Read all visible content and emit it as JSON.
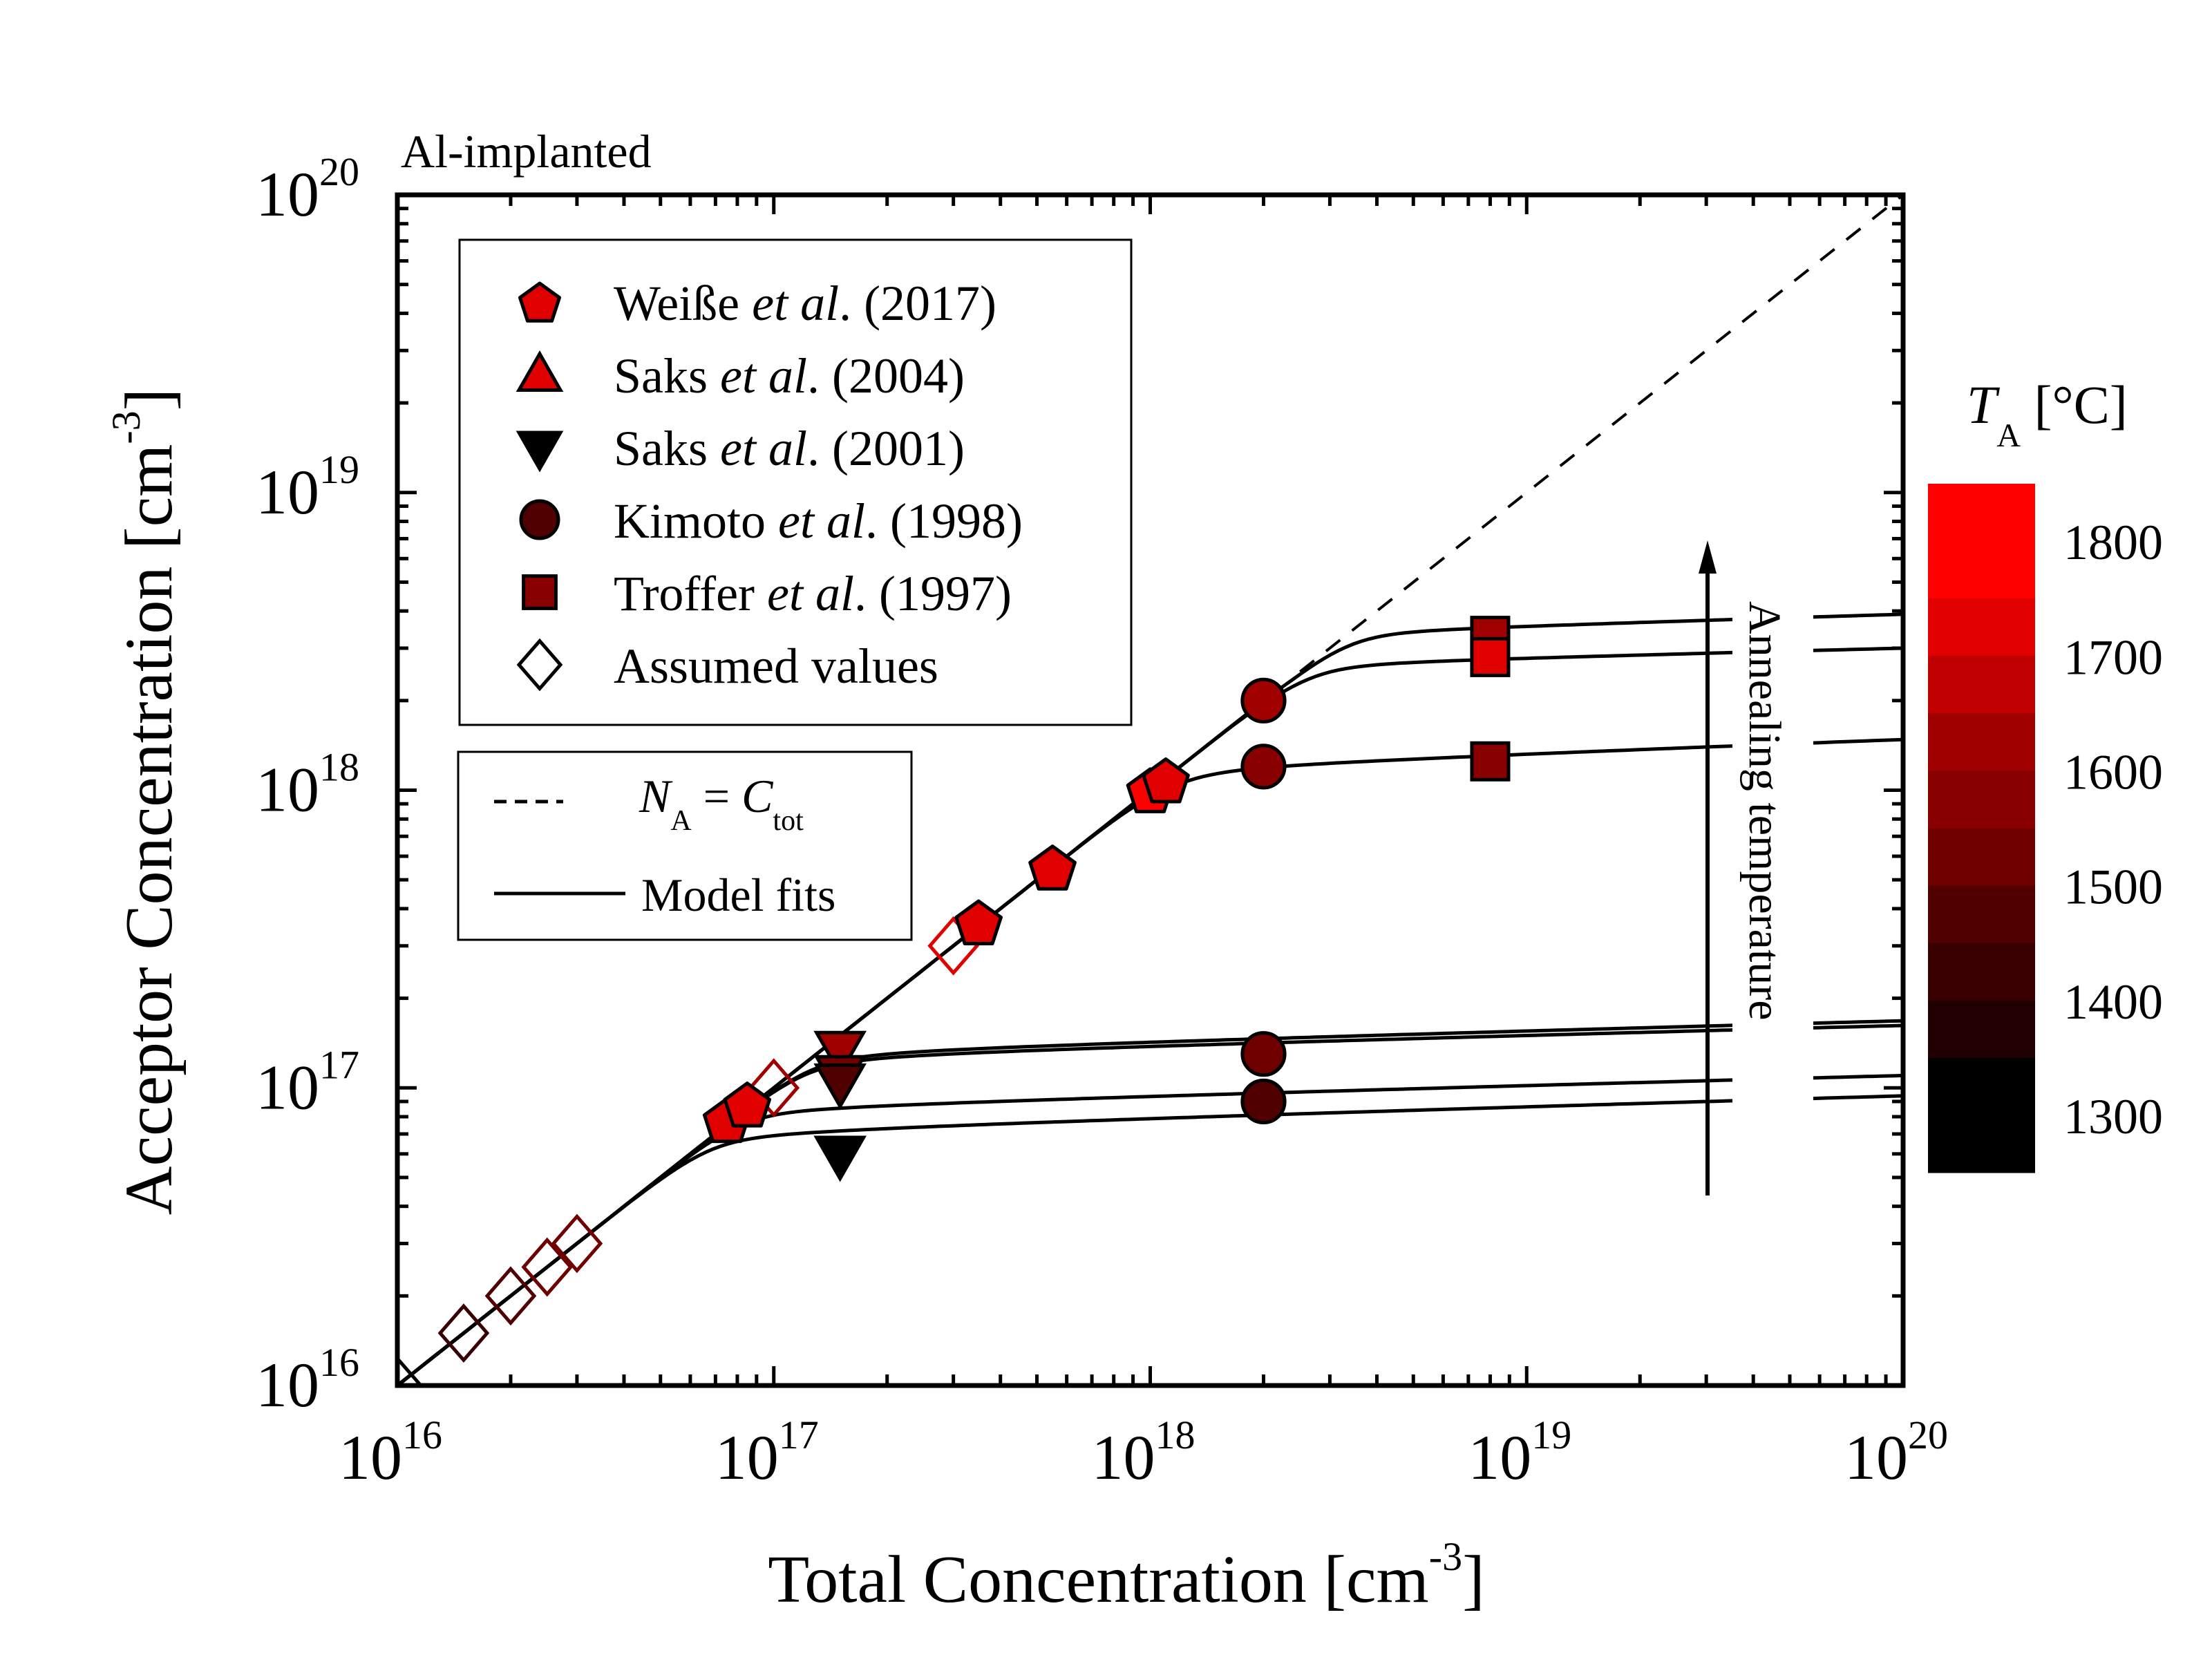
{
  "chart_data": {
    "type": "scatter",
    "title": "Al-implanted",
    "xlabel": "Total Concentration [cm",
    "xlabel_sup": "-3",
    "xlabel_end": "]",
    "ylabel": "Acceptor Concentration [cm",
    "ylabel_sup": "-3",
    "ylabel_end": "]",
    "xscale": "log",
    "yscale": "log",
    "xlim": [
      1e+16,
      1e+20
    ],
    "ylim": [
      1e+16,
      1e+20
    ],
    "xticks": [
      {
        "value": 1e+16,
        "base": "10",
        "exp": "16"
      },
      {
        "value": 1e+17,
        "base": "10",
        "exp": "17"
      },
      {
        "value": 1e+18,
        "base": "10",
        "exp": "18"
      },
      {
        "value": 1e+19,
        "base": "10",
        "exp": "19"
      },
      {
        "value": 1e+20,
        "base": "10",
        "exp": "20"
      }
    ],
    "yticks": [
      {
        "value": 1e+16,
        "base": "10",
        "exp": "16"
      },
      {
        "value": 1e+17,
        "base": "10",
        "exp": "17"
      },
      {
        "value": 1e+18,
        "base": "10",
        "exp": "18"
      },
      {
        "value": 1e+19,
        "base": "10",
        "exp": "19"
      },
      {
        "value": 1e+20,
        "base": "10",
        "exp": "20"
      }
    ],
    "grid": false,
    "legend_placement": "top-left",
    "legend": [
      {
        "key": "weisse",
        "marker": "pentagon",
        "color": "#E00000",
        "name_pre": "Weiße ",
        "name_it": "et al",
        "name_post": ". (2017)"
      },
      {
        "key": "saks2004",
        "marker": "triangle-up",
        "color": "#E00000",
        "name_pre": "Saks ",
        "name_it": "et al",
        "name_post": ". (2004)"
      },
      {
        "key": "saks2001",
        "marker": "triangle-down",
        "color": "#000000",
        "name_pre": "Saks ",
        "name_it": "et al",
        "name_post": ". (2001)"
      },
      {
        "key": "kimoto",
        "marker": "circle",
        "color": "#500000",
        "name_pre": "Kimoto ",
        "name_it": "et al",
        "name_post": ". (1998)"
      },
      {
        "key": "troffer",
        "marker": "square",
        "color": "#880000",
        "name_pre": "Troffer ",
        "name_it": "et al",
        "name_post": ". (1997)"
      },
      {
        "key": "assumed",
        "marker": "diamond-open",
        "color": "#000000",
        "name_pre": "Assumed values",
        "name_it": "",
        "name_post": ""
      }
    ],
    "line_legend": [
      {
        "style": "dashed",
        "label_main": "N",
        "label_sub": "A",
        "label_mid": " = ",
        "label_main2": "C",
        "label_sub2": "tot"
      },
      {
        "style": "solid",
        "label": "Model fits"
      }
    ],
    "series": [
      {
        "name": "Weiße et al. (2017)",
        "marker": "pentagon",
        "points": [
          {
            "x": 7.5e+16,
            "y": 7.8e+16,
            "color": "#E00000"
          },
          {
            "x": 8.5e+16,
            "y": 8.8e+16,
            "color": "#E00000"
          },
          {
            "x": 3.5e+17,
            "y": 3.6e+17,
            "color": "#E00000"
          },
          {
            "x": 5.5e+17,
            "y": 5.5e+17,
            "color": "#E00000"
          },
          {
            "x": 1e+18,
            "y": 1e+18,
            "color": "#FF0000"
          },
          {
            "x": 1.1e+18,
            "y": 1.08e+18,
            "color": "#E00000"
          }
        ]
      },
      {
        "name": "Saks et al. (2004)",
        "marker": "triangle-up",
        "points": []
      },
      {
        "name": "Saks et al. (2001)",
        "marker": "triangle-down",
        "points": [
          {
            "x": 1.5e+17,
            "y": 1.35e+17,
            "color": "#A00000"
          },
          {
            "x": 1.5e+17,
            "y": 1.12e+17,
            "color": "#700000"
          },
          {
            "x": 1.5e+17,
            "y": 1.05e+17,
            "color": "#500000"
          },
          {
            "x": 1.5e+17,
            "y": 6e+16,
            "color": "#000000"
          }
        ]
      },
      {
        "name": "Kimoto et al. (1998)",
        "marker": "circle",
        "points": [
          {
            "x": 2e+18,
            "y": 2e+18,
            "color": "#A00000"
          },
          {
            "x": 2e+18,
            "y": 1.2e+18,
            "color": "#880000"
          },
          {
            "x": 2e+18,
            "y": 1.3e+17,
            "color": "#700000"
          },
          {
            "x": 2e+18,
            "y": 9e+16,
            "color": "#500000"
          }
        ]
      },
      {
        "name": "Troffer et al. (1997)",
        "marker": "square",
        "points": [
          {
            "x": 8e+18,
            "y": 3.3e+18,
            "color": "#A00000"
          },
          {
            "x": 8e+18,
            "y": 2.8e+18,
            "color": "#E00000"
          },
          {
            "x": 8e+18,
            "y": 1.25e+18,
            "color": "#880000"
          }
        ]
      },
      {
        "name": "Assumed values",
        "marker": "diamond-open",
        "points": [
          {
            "x": 1e+16,
            "y": 1e+16,
            "color": "#000000"
          },
          {
            "x": 1.5e+16,
            "y": 1.5e+16,
            "color": "#380000"
          },
          {
            "x": 2e+16,
            "y": 2e+16,
            "color": "#500000"
          },
          {
            "x": 2.5e+16,
            "y": 2.5e+16,
            "color": "#700000"
          },
          {
            "x": 3e+16,
            "y": 3e+16,
            "color": "#700000"
          },
          {
            "x": 1e+17,
            "y": 1e+17,
            "color": "#A00000"
          },
          {
            "x": 3e+17,
            "y": 3e+17,
            "color": "#E00000"
          }
        ]
      }
    ],
    "reference_line": {
      "name": "N_A = C_tot",
      "style": "dashed",
      "x": [
        2.5e+18,
        1e+20
      ],
      "y": [
        2.5e+18,
        1e+20
      ]
    },
    "model_fits": [
      {
        "saturation": 3.3e+18,
        "end": 3.9e+18,
        "knee": 2.4e+18
      },
      {
        "saturation": 2.6e+18,
        "end": 3e+18,
        "knee": 2.2e+18
      },
      {
        "saturation": 1.15e+18,
        "end": 1.48e+18,
        "knee": 1.05e+18
      },
      {
        "saturation": 1.28e+17,
        "end": 1.68e+17,
        "knee": 1e+17
      },
      {
        "saturation": 1.24e+17,
        "end": 1.62e+17,
        "knee": 9.6e+16
      },
      {
        "saturation": 8.2e+16,
        "end": 1.1e+17,
        "knee": 5.2e+16
      },
      {
        "saturation": 6.8e+16,
        "end": 9.4e+16,
        "knee": 4.8e+16
      }
    ],
    "annotation": {
      "text": "Annealing temperature",
      "direction": "up"
    },
    "colorbar": {
      "title_main": "T",
      "title_sub": "A",
      "title_unit": " [°C]",
      "range": [
        1250,
        1850
      ],
      "ticks": [
        1800,
        1700,
        1600,
        1500,
        1400,
        1300
      ],
      "bands": [
        {
          "from": 1750,
          "to": 1850,
          "color": "#FF0000"
        },
        {
          "from": 1700,
          "to": 1750,
          "color": "#E00000"
        },
        {
          "from": 1650,
          "to": 1700,
          "color": "#C00000"
        },
        {
          "from": 1600,
          "to": 1650,
          "color": "#A00000"
        },
        {
          "from": 1550,
          "to": 1600,
          "color": "#880000"
        },
        {
          "from": 1500,
          "to": 1550,
          "color": "#700000"
        },
        {
          "from": 1450,
          "to": 1500,
          "color": "#500000"
        },
        {
          "from": 1400,
          "to": 1450,
          "color": "#380000"
        },
        {
          "from": 1350,
          "to": 1400,
          "color": "#200000"
        },
        {
          "from": 1250,
          "to": 1350,
          "color": "#000000"
        }
      ]
    }
  }
}
